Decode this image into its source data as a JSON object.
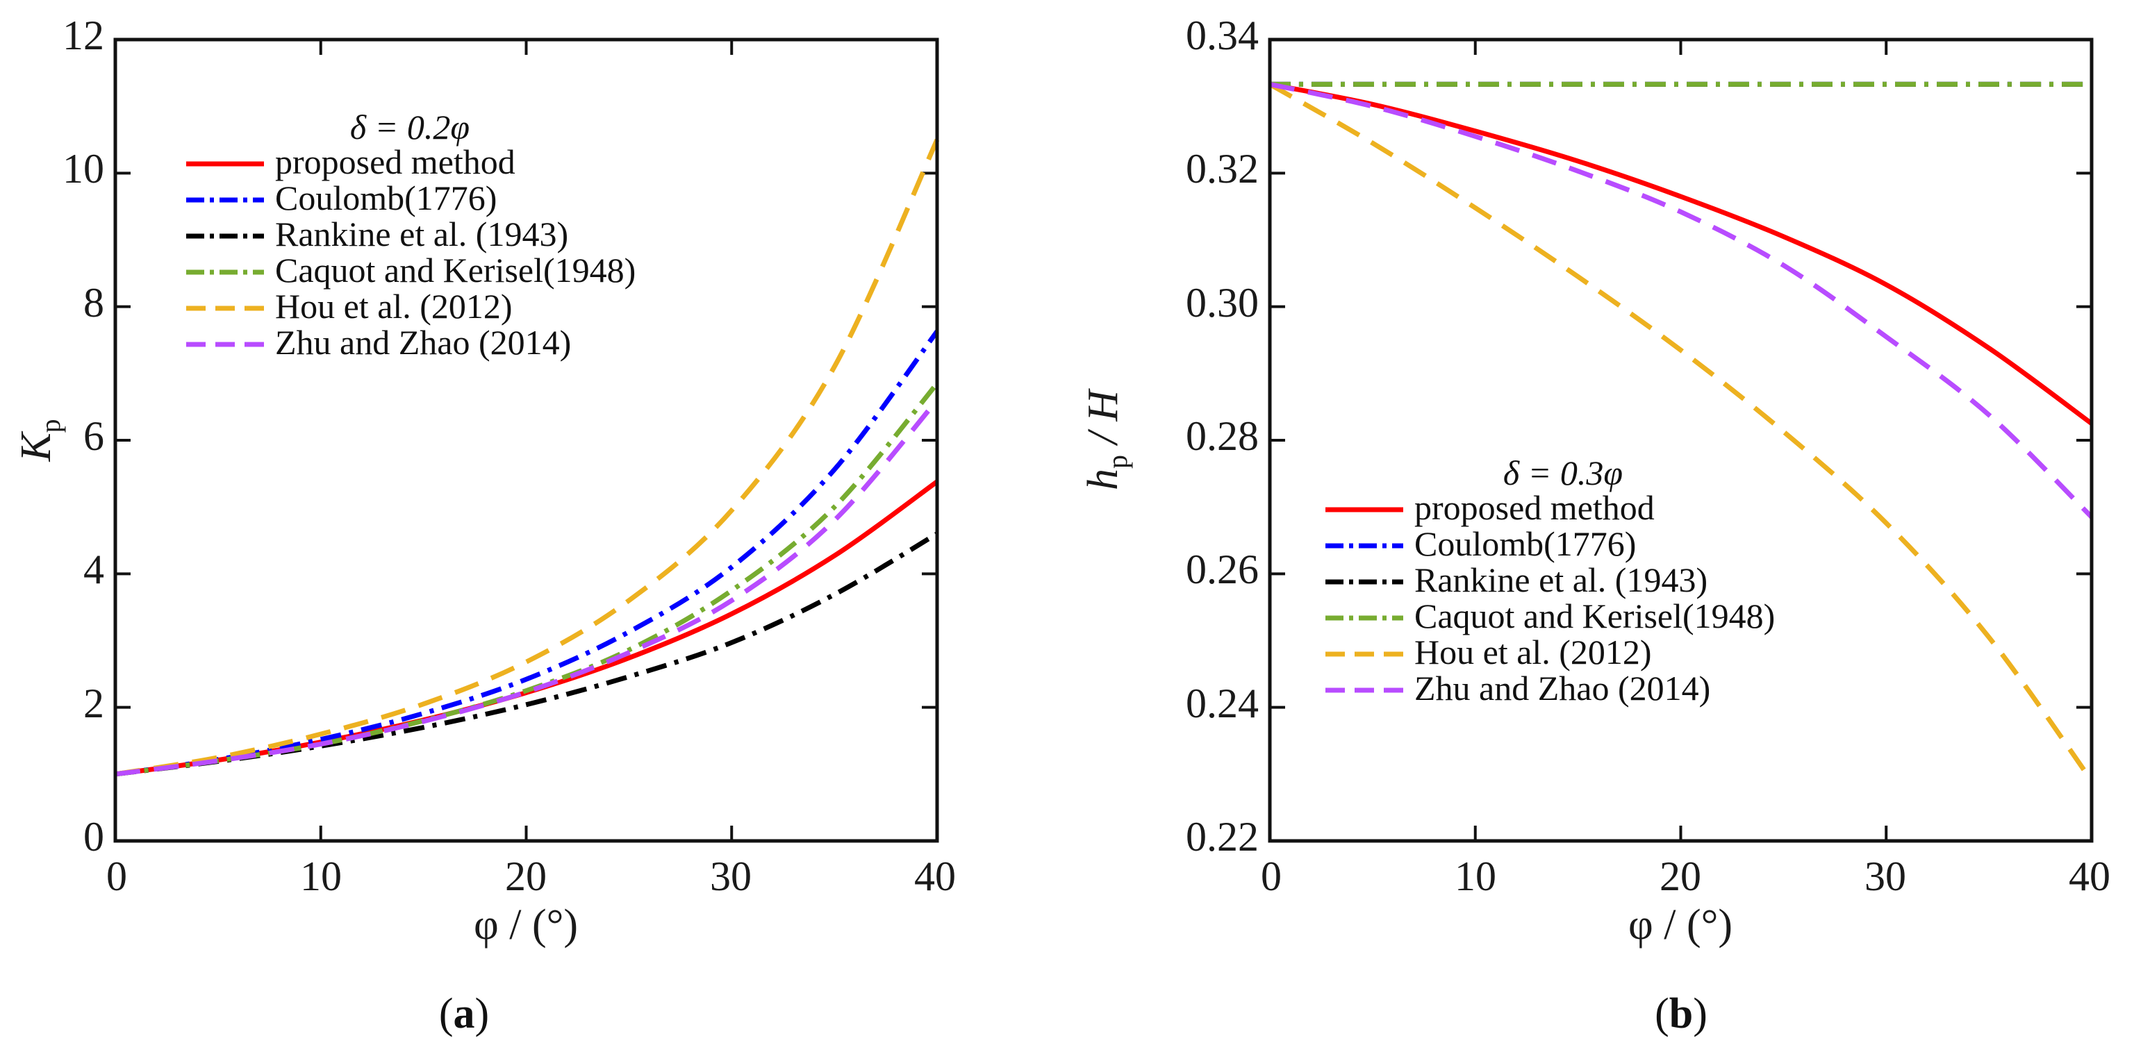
{
  "chart_data": [
    {
      "type": "line",
      "panel_label": "(a)",
      "caption_text": "a",
      "xlabel": "φ / (°)",
      "ylabel_main": "K",
      "ylabel_sub": "p",
      "xlim": [
        0,
        40
      ],
      "ylim": [
        0,
        12
      ],
      "xticks": [
        "0",
        "10",
        "20",
        "30",
        "40"
      ],
      "yticks": [
        "0",
        "2",
        "4",
        "6",
        "8",
        "10",
        "12"
      ],
      "legend_title": "δ = 0.2φ",
      "legend_position": "top-left",
      "x": [
        0,
        5,
        10,
        15,
        20,
        25,
        30,
        35,
        40
      ],
      "series": [
        {
          "name": "proposed method",
          "color": "#ff0000",
          "dash": "solid",
          "values": [
            1.0,
            1.21,
            1.48,
            1.81,
            2.22,
            2.74,
            3.4,
            4.27,
            5.38
          ]
        },
        {
          "name": "Coulomb(1776)",
          "color": "#0000ff",
          "dash": "dashdot",
          "values": [
            1.0,
            1.22,
            1.52,
            1.91,
            2.42,
            3.13,
            4.1,
            5.56,
            7.63
          ]
        },
        {
          "name": "Rankine et al. (1943)",
          "color": "#000000",
          "dash": "dashdot",
          "values": [
            1.0,
            1.19,
            1.42,
            1.7,
            2.04,
            2.46,
            2.97,
            3.69,
            4.6
          ]
        },
        {
          "name": "Caquot and Kerisel(1948)",
          "color": "#77ac30",
          "dash": "dashdot",
          "values": [
            1.0,
            1.2,
            1.45,
            1.8,
            2.25,
            2.86,
            3.75,
            5.0,
            6.85
          ]
        },
        {
          "name": "Hou et al. (2012)",
          "color": "#edb120",
          "dash": "dash",
          "values": [
            1.0,
            1.25,
            1.6,
            2.05,
            2.68,
            3.6,
            4.95,
            7.1,
            10.5
          ]
        },
        {
          "name": "Zhu and Zhao (2014)",
          "color": "#b84cff",
          "dash": "dash",
          "values": [
            1.0,
            1.2,
            1.45,
            1.79,
            2.23,
            2.82,
            3.6,
            4.8,
            6.6
          ]
        }
      ]
    },
    {
      "type": "line",
      "panel_label": "(b)",
      "caption_text": "b",
      "xlabel": "φ / (°)",
      "ylabel_main": "h",
      "ylabel_sub": "p",
      "ylabel_tail": " / H",
      "xlim": [
        0,
        40
      ],
      "ylim": [
        0.22,
        0.34
      ],
      "xticks": [
        "0",
        "10",
        "20",
        "30",
        "40"
      ],
      "yticks": [
        "0.22",
        "0.24",
        "0.26",
        "0.28",
        "0.30",
        "0.32",
        "0.34"
      ],
      "legend_title": "δ = 0.3φ",
      "legend_position": "bottom-left",
      "x": [
        0,
        5,
        10,
        15,
        20,
        25,
        30,
        35,
        40
      ],
      "series": [
        {
          "name": "proposed method",
          "color": "#ff0000",
          "dash": "solid",
          "values": [
            0.3333,
            0.3303,
            0.3263,
            0.3218,
            0.3165,
            0.3105,
            0.3033,
            0.2938,
            0.2825
          ]
        },
        {
          "name": "Coulomb(1776)",
          "color": "#0000ff",
          "dash": "dashdot",
          "values": [
            0.3333,
            0.3333,
            0.3333,
            0.3333,
            0.3333,
            0.3333,
            0.3333,
            0.3333,
            0.3333
          ]
        },
        {
          "name": "Rankine et al. (1943)",
          "color": "#000000",
          "dash": "dashdot",
          "values": [
            0.3333,
            0.3333,
            0.3333,
            0.3333,
            0.3333,
            0.3333,
            0.3333,
            0.3333,
            0.3333
          ]
        },
        {
          "name": "Caquot and Kerisel(1948)",
          "color": "#77ac30",
          "dash": "dashdot",
          "values": [
            0.3333,
            0.3333,
            0.3333,
            0.3333,
            0.3333,
            0.3333,
            0.3333,
            0.3333,
            0.3333
          ]
        },
        {
          "name": "Hou et al. (2012)",
          "color": "#edb120",
          "dash": "dash",
          "values": [
            0.3333,
            0.3245,
            0.3148,
            0.3045,
            0.2935,
            0.2813,
            0.2676,
            0.2505,
            0.229
          ]
        },
        {
          "name": "Zhu and Zhao (2014)",
          "color": "#b84cff",
          "dash": "dash",
          "values": [
            0.3333,
            0.33,
            0.3255,
            0.3203,
            0.3142,
            0.3062,
            0.2955,
            0.2838,
            0.2685
          ]
        }
      ]
    }
  ]
}
